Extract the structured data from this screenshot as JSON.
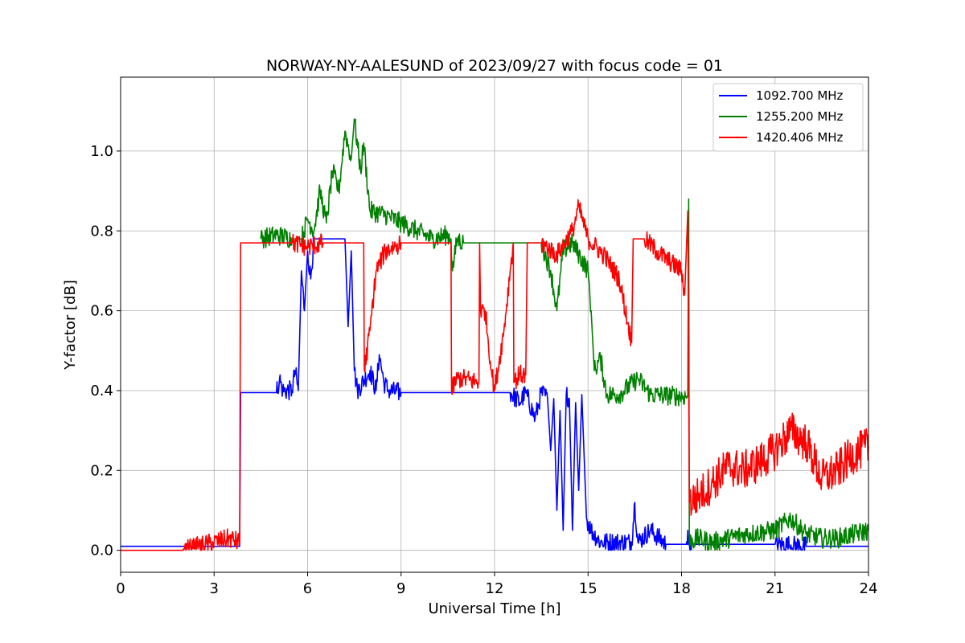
{
  "chart_data": {
    "type": "line",
    "title": "NORWAY-NY-AALESUND of 2023/09/27 with focus code = 01",
    "xlabel": "Universal Time [h]",
    "ylabel": "Y-factor [dB]",
    "xlim": [
      0,
      24
    ],
    "ylim": [
      -0.055,
      1.185
    ],
    "xticks": [
      0,
      3,
      6,
      9,
      12,
      15,
      18,
      21,
      24
    ],
    "xtick_labels": [
      "0",
      "3",
      "6",
      "9",
      "12",
      "15",
      "18",
      "21",
      "24"
    ],
    "yticks": [
      0.0,
      0.2,
      0.4,
      0.6,
      0.8,
      1.0
    ],
    "ytick_labels": [
      "0.0",
      "0.2",
      "0.4",
      "0.6",
      "0.8",
      "1.0"
    ],
    "grid": true,
    "legend_position": "top-right",
    "series": [
      {
        "name": "1092.700 MHz",
        "color": "#0000ff",
        "points": [
          [
            0,
            0.01
          ],
          [
            3.82,
            0.01
          ],
          [
            3.85,
            0.395
          ],
          [
            5.0,
            0.395
          ],
          [
            5.1,
            0.43
          ],
          [
            5.2,
            0.4
          ],
          [
            5.5,
            0.4
          ],
          [
            5.6,
            0.45
          ],
          [
            5.7,
            0.4
          ],
          [
            5.8,
            0.7
          ],
          [
            5.9,
            0.6
          ],
          [
            6.0,
            0.75
          ],
          [
            6.1,
            0.68
          ],
          [
            6.2,
            0.78
          ],
          [
            6.5,
            0.78
          ],
          [
            7.0,
            0.78
          ],
          [
            7.2,
            0.78
          ],
          [
            7.3,
            0.56
          ],
          [
            7.4,
            0.75
          ],
          [
            7.5,
            0.45
          ],
          [
            7.6,
            0.4
          ],
          [
            8.0,
            0.45
          ],
          [
            8.2,
            0.4
          ],
          [
            8.3,
            0.49
          ],
          [
            8.45,
            0.42
          ],
          [
            8.6,
            0.4
          ],
          [
            9.0,
            0.395
          ],
          [
            12.0,
            0.395
          ],
          [
            12.5,
            0.395
          ],
          [
            12.8,
            0.37
          ],
          [
            13.0,
            0.395
          ],
          [
            13.3,
            0.33
          ],
          [
            13.5,
            0.395
          ],
          [
            13.7,
            0.38
          ],
          [
            13.8,
            0.25
          ],
          [
            13.9,
            0.38
          ],
          [
            14.0,
            0.1
          ],
          [
            14.1,
            0.35
          ],
          [
            14.2,
            0.05
          ],
          [
            14.3,
            0.39
          ],
          [
            14.4,
            0.38
          ],
          [
            14.5,
            0.05
          ],
          [
            14.6,
            0.37
          ],
          [
            14.7,
            0.15
          ],
          [
            14.8,
            0.39
          ],
          [
            14.95,
            0.08
          ],
          [
            15.1,
            0.05
          ],
          [
            15.4,
            0.02
          ],
          [
            16.0,
            0.02
          ],
          [
            16.4,
            0.02
          ],
          [
            16.5,
            0.12
          ],
          [
            16.6,
            0.02
          ],
          [
            17.0,
            0.05
          ],
          [
            17.5,
            0.015
          ],
          [
            18.15,
            0.015
          ],
          [
            18.2,
            0.05
          ],
          [
            18.25,
            0.02
          ],
          [
            18.3,
            0.015
          ],
          [
            21.0,
            0.015
          ],
          [
            22.0,
            0.01
          ],
          [
            24.0,
            0.01
          ]
        ]
      },
      {
        "name": "1255.200 MHz",
        "color": "#008000",
        "points": [
          [
            4.5,
            0.78
          ],
          [
            5.0,
            0.79
          ],
          [
            5.5,
            0.78
          ],
          [
            5.8,
            0.78
          ],
          [
            6.0,
            0.83
          ],
          [
            6.2,
            0.8
          ],
          [
            6.4,
            0.9
          ],
          [
            6.6,
            0.82
          ],
          [
            6.8,
            0.95
          ],
          [
            7.0,
            0.9
          ],
          [
            7.2,
            1.05
          ],
          [
            7.4,
            0.98
          ],
          [
            7.5,
            1.08
          ],
          [
            7.7,
            0.95
          ],
          [
            7.8,
            1.02
          ],
          [
            8.0,
            0.85
          ],
          [
            8.5,
            0.84
          ],
          [
            9.0,
            0.82
          ],
          [
            9.5,
            0.8
          ],
          [
            10.0,
            0.78
          ],
          [
            10.5,
            0.79
          ],
          [
            10.6,
            0.78
          ],
          [
            10.65,
            0.7
          ],
          [
            10.8,
            0.78
          ],
          [
            11.0,
            0.77
          ],
          [
            11.5,
            0.77
          ],
          [
            12.0,
            0.77
          ],
          [
            12.5,
            0.77
          ],
          [
            13.0,
            0.77
          ],
          [
            13.5,
            0.77
          ],
          [
            13.8,
            0.7
          ],
          [
            14.0,
            0.6
          ],
          [
            14.2,
            0.75
          ],
          [
            14.5,
            0.77
          ],
          [
            15.0,
            0.7
          ],
          [
            15.1,
            0.6
          ],
          [
            15.2,
            0.45
          ],
          [
            15.4,
            0.48
          ],
          [
            15.6,
            0.39
          ],
          [
            16.0,
            0.39
          ],
          [
            16.6,
            0.43
          ],
          [
            17.0,
            0.39
          ],
          [
            18.2,
            0.385
          ],
          [
            18.23,
            0.88
          ],
          [
            18.25,
            0.02
          ],
          [
            18.5,
            0.03
          ],
          [
            19.0,
            0.02
          ],
          [
            20.0,
            0.04
          ],
          [
            21.0,
            0.05
          ],
          [
            21.5,
            0.08
          ],
          [
            22.0,
            0.04
          ],
          [
            22.5,
            0.03
          ],
          [
            23.0,
            0.03
          ],
          [
            24.0,
            0.05
          ]
        ]
      },
      {
        "name": "1420.406 MHz",
        "color": "#ff0000",
        "points": [
          [
            0,
            0.0
          ],
          [
            2.0,
            0.0
          ],
          [
            2.5,
            0.01
          ],
          [
            3.0,
            0.02
          ],
          [
            3.5,
            0.03
          ],
          [
            3.82,
            0.02
          ],
          [
            3.85,
            0.77
          ],
          [
            4.5,
            0.77
          ],
          [
            5.0,
            0.77
          ],
          [
            5.5,
            0.77
          ],
          [
            6.0,
            0.76
          ],
          [
            6.5,
            0.77
          ],
          [
            7.0,
            0.77
          ],
          [
            7.5,
            0.77
          ],
          [
            7.8,
            0.77
          ],
          [
            7.82,
            0.45
          ],
          [
            8.0,
            0.55
          ],
          [
            8.2,
            0.7
          ],
          [
            8.5,
            0.75
          ],
          [
            9.0,
            0.77
          ],
          [
            10.0,
            0.77
          ],
          [
            10.6,
            0.77
          ],
          [
            10.62,
            0.4
          ],
          [
            10.8,
            0.43
          ],
          [
            11.0,
            0.43
          ],
          [
            11.5,
            0.42
          ],
          [
            11.52,
            0.77
          ],
          [
            11.55,
            0.6
          ],
          [
            11.7,
            0.6
          ],
          [
            11.9,
            0.45
          ],
          [
            12.0,
            0.4
          ],
          [
            12.3,
            0.55
          ],
          [
            12.5,
            0.7
          ],
          [
            12.6,
            0.77
          ],
          [
            12.62,
            0.42
          ],
          [
            12.8,
            0.44
          ],
          [
            13.0,
            0.44
          ],
          [
            13.05,
            0.77
          ],
          [
            13.5,
            0.77
          ],
          [
            14.0,
            0.74
          ],
          [
            14.5,
            0.8
          ],
          [
            14.7,
            0.86
          ],
          [
            15.0,
            0.78
          ],
          [
            15.5,
            0.74
          ],
          [
            16.0,
            0.68
          ],
          [
            16.4,
            0.52
          ],
          [
            16.45,
            0.78
          ],
          [
            16.8,
            0.78
          ],
          [
            17.2,
            0.75
          ],
          [
            17.5,
            0.73
          ],
          [
            18.0,
            0.7
          ],
          [
            18.1,
            0.64
          ],
          [
            18.2,
            0.85
          ],
          [
            18.25,
            0.12
          ],
          [
            18.6,
            0.14
          ],
          [
            19.0,
            0.17
          ],
          [
            19.5,
            0.21
          ],
          [
            20.0,
            0.2
          ],
          [
            20.5,
            0.22
          ],
          [
            21.0,
            0.25
          ],
          [
            21.5,
            0.3
          ],
          [
            22.0,
            0.27
          ],
          [
            22.5,
            0.18
          ],
          [
            23.0,
            0.2
          ],
          [
            23.5,
            0.24
          ],
          [
            24.0,
            0.26
          ]
        ]
      }
    ]
  }
}
